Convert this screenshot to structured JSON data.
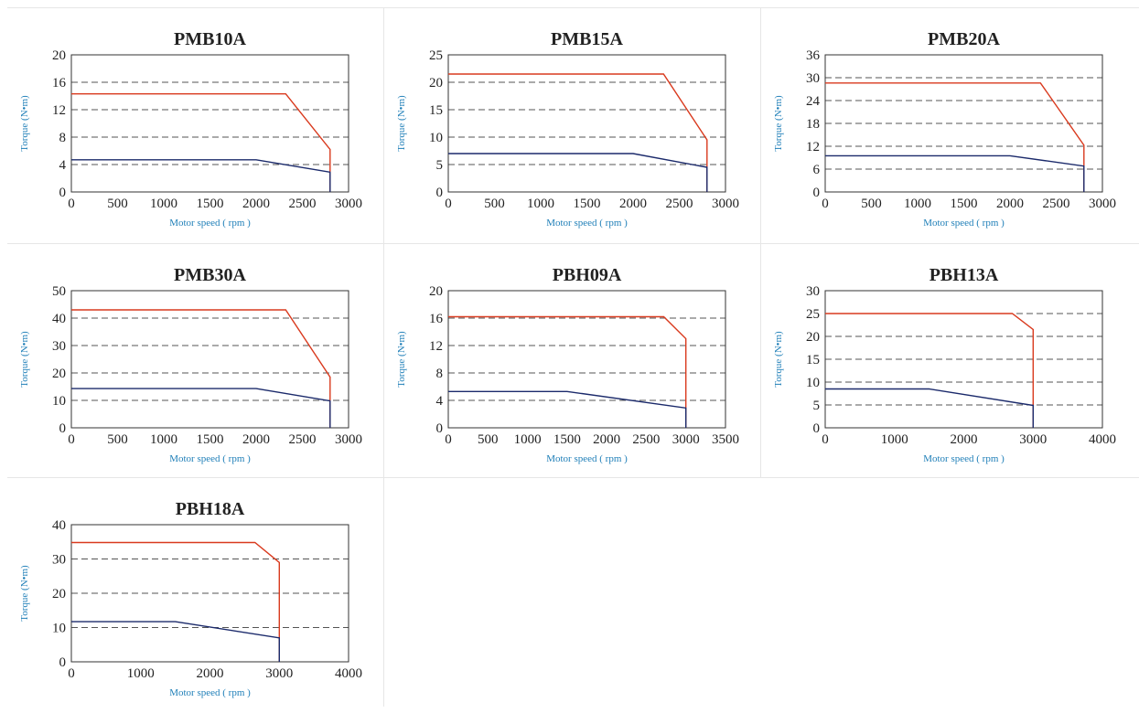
{
  "colors": {
    "peak": "#d93a1e",
    "rated": "#1b2a6b",
    "axis_label": "#1f7fb8",
    "gridline": "#555555",
    "cell_border": "#e6e6e6"
  },
  "chart_data": [
    {
      "type": "line",
      "title": "PMB10A",
      "xlabel": "Motor speed ( rpm )",
      "ylabel": "Torque (N•m)",
      "xlim": [
        0,
        3000
      ],
      "ylim": [
        0,
        20
      ],
      "xticks": [
        0,
        500,
        1000,
        1500,
        2000,
        2500,
        3000
      ],
      "yticks": [
        0,
        4,
        8,
        12,
        16,
        20
      ],
      "grid": "horizontal-dashed",
      "series": [
        {
          "color": "#d93a1e",
          "points": [
            [
              0,
              14.3
            ],
            [
              2320,
              14.3
            ],
            [
              2800,
              6.2
            ],
            [
              2800,
              0
            ]
          ]
        },
        {
          "color": "#1b2a6b",
          "points": [
            [
              0,
              4.7
            ],
            [
              2000,
              4.7
            ],
            [
              2800,
              2.9
            ],
            [
              2800,
              0
            ]
          ]
        }
      ]
    },
    {
      "type": "line",
      "title": "PMB15A",
      "xlabel": "Motor speed ( rpm )",
      "ylabel": "Torque (N•m)",
      "xlim": [
        0,
        3000
      ],
      "ylim": [
        0,
        25
      ],
      "xticks": [
        0,
        500,
        1000,
        1500,
        2000,
        2500,
        3000
      ],
      "yticks": [
        0,
        5,
        10,
        15,
        20,
        25
      ],
      "grid": "horizontal-dashed",
      "series": [
        {
          "color": "#d93a1e",
          "points": [
            [
              0,
              21.5
            ],
            [
              2330,
              21.5
            ],
            [
              2800,
              9.5
            ],
            [
              2800,
              0
            ]
          ]
        },
        {
          "color": "#1b2a6b",
          "points": [
            [
              0,
              7.0
            ],
            [
              2000,
              7.0
            ],
            [
              2800,
              4.5
            ],
            [
              2800,
              0
            ]
          ]
        }
      ]
    },
    {
      "type": "line",
      "title": "PMB20A",
      "xlabel": "Motor speed ( rpm )",
      "ylabel": "Torque (N•m)",
      "xlim": [
        0,
        3000
      ],
      "ylim": [
        0,
        36
      ],
      "xticks": [
        0,
        500,
        1000,
        1500,
        2000,
        2500,
        3000
      ],
      "yticks": [
        0,
        6,
        12,
        18,
        24,
        30,
        36
      ],
      "grid": "horizontal-dashed",
      "series": [
        {
          "color": "#d93a1e",
          "points": [
            [
              0,
              28.6
            ],
            [
              2330,
              28.6
            ],
            [
              2800,
              12.3
            ],
            [
              2800,
              0
            ]
          ]
        },
        {
          "color": "#1b2a6b",
          "points": [
            [
              0,
              9.5
            ],
            [
              2000,
              9.5
            ],
            [
              2800,
              6.8
            ],
            [
              2800,
              0
            ]
          ]
        }
      ]
    },
    {
      "type": "line",
      "title": "PMB30A",
      "xlabel": "Motor speed ( rpm )",
      "ylabel": "Torque (N•m)",
      "xlim": [
        0,
        3000
      ],
      "ylim": [
        0,
        50
      ],
      "xticks": [
        0,
        500,
        1000,
        1500,
        2000,
        2500,
        3000
      ],
      "yticks": [
        0,
        10,
        20,
        30,
        40,
        50
      ],
      "grid": "horizontal-dashed",
      "series": [
        {
          "color": "#d93a1e",
          "points": [
            [
              0,
              43
            ],
            [
              2320,
              43
            ],
            [
              2800,
              18.5
            ],
            [
              2800,
              0
            ]
          ]
        },
        {
          "color": "#1b2a6b",
          "points": [
            [
              0,
              14.3
            ],
            [
              2000,
              14.3
            ],
            [
              2800,
              9.8
            ],
            [
              2800,
              0
            ]
          ]
        }
      ]
    },
    {
      "type": "line",
      "title": "PBH09A",
      "xlabel": "Motor speed ( rpm )",
      "ylabel": "Torque (N•m)",
      "xlim": [
        0,
        3500
      ],
      "ylim": [
        0,
        20
      ],
      "xticks": [
        0,
        500,
        1000,
        1500,
        2000,
        2500,
        3000,
        3500
      ],
      "yticks": [
        0,
        4,
        8,
        12,
        16,
        20
      ],
      "grid": "horizontal-dashed",
      "series": [
        {
          "color": "#d93a1e",
          "points": [
            [
              0,
              16.2
            ],
            [
              2720,
              16.2
            ],
            [
              3000,
              13.0
            ],
            [
              3000,
              0
            ]
          ]
        },
        {
          "color": "#1b2a6b",
          "points": [
            [
              0,
              5.3
            ],
            [
              1500,
              5.3
            ],
            [
              3000,
              2.9
            ],
            [
              3000,
              0
            ]
          ]
        }
      ]
    },
    {
      "type": "line",
      "title": "PBH13A",
      "xlabel": "Motor speed ( rpm )",
      "ylabel": "Torque (N•m)",
      "xlim": [
        0,
        4000
      ],
      "ylim": [
        0,
        30
      ],
      "xticks": [
        0,
        1000,
        2000,
        3000,
        4000
      ],
      "yticks": [
        0,
        5,
        10,
        15,
        20,
        25,
        30
      ],
      "grid": "horizontal-dashed",
      "series": [
        {
          "color": "#d93a1e",
          "points": [
            [
              0,
              25
            ],
            [
              2700,
              25
            ],
            [
              3000,
              21.5
            ],
            [
              3000,
              0
            ]
          ]
        },
        {
          "color": "#1b2a6b",
          "points": [
            [
              0,
              8.5
            ],
            [
              1500,
              8.5
            ],
            [
              3000,
              4.9
            ],
            [
              3000,
              0
            ]
          ]
        }
      ]
    },
    {
      "type": "line",
      "title": "PBH18A",
      "xlabel": "Motor speed ( rpm )",
      "ylabel": "Torque (N•m)",
      "xlim": [
        0,
        4000
      ],
      "ylim": [
        0,
        40
      ],
      "xticks": [
        0,
        1000,
        2000,
        3000,
        4000
      ],
      "yticks": [
        0,
        10,
        20,
        30,
        40
      ],
      "grid": "horizontal-dashed",
      "series": [
        {
          "color": "#d93a1e",
          "points": [
            [
              0,
              34.8
            ],
            [
              2650,
              34.8
            ],
            [
              3000,
              29
            ],
            [
              3000,
              0
            ]
          ]
        },
        {
          "color": "#1b2a6b",
          "points": [
            [
              0,
              11.7
            ],
            [
              1500,
              11.7
            ],
            [
              3000,
              7.0
            ],
            [
              3000,
              0
            ]
          ]
        }
      ]
    }
  ]
}
